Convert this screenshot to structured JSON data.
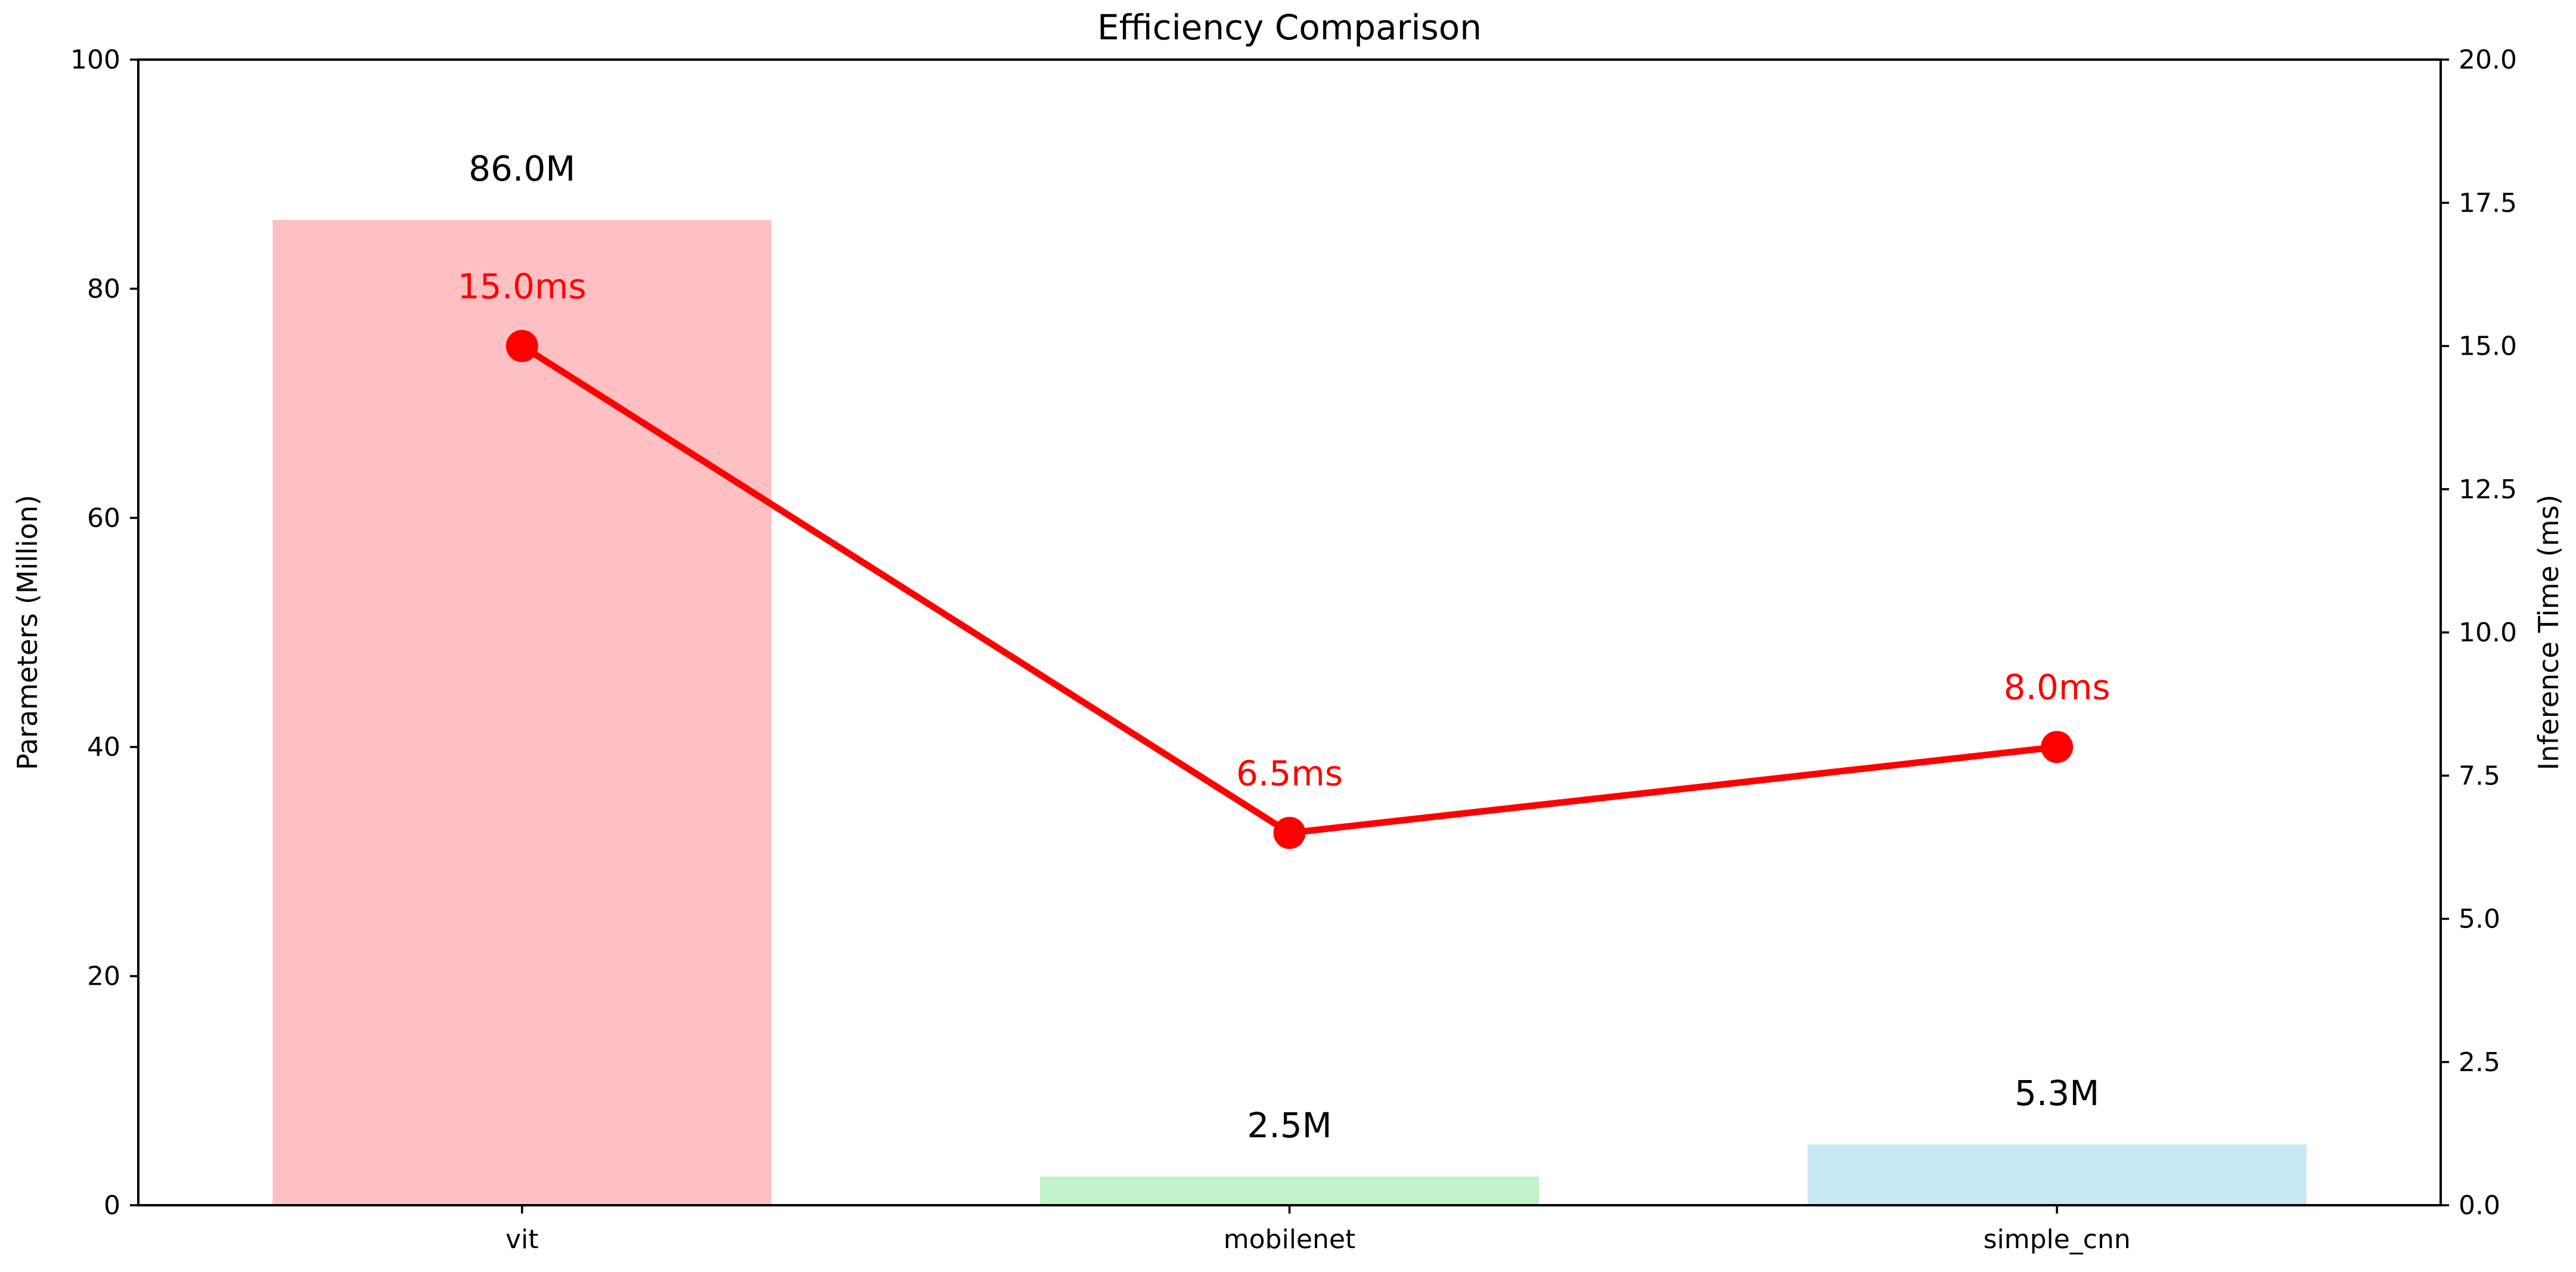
{
  "chart_data": {
    "type": "bar",
    "title": "Efficiency Comparison",
    "categories": [
      "vit",
      "mobilenet",
      "simple_cnn"
    ],
    "ylabel": "Parameters (Million)",
    "ylim": [
      0,
      100
    ],
    "yticks": [
      0,
      20,
      40,
      60,
      80,
      100
    ],
    "y2label": "Inference Time (ms)",
    "y2lim": [
      0,
      20
    ],
    "y2ticks": [
      "0.0",
      "2.5",
      "5.0",
      "7.5",
      "10.0",
      "12.5",
      "15.0",
      "17.5",
      "20.0"
    ],
    "grid": false,
    "series": [
      {
        "type": "bar",
        "axis": "left",
        "values": [
          86.0,
          2.5,
          5.3
        ],
        "labels": [
          "86.0M",
          "2.5M",
          "5.3M"
        ],
        "colors": [
          "#ffc0c3",
          "#c2f2c8",
          "#c6e8f5"
        ]
      },
      {
        "type": "line",
        "axis": "right",
        "values": [
          15.0,
          6.5,
          8.0
        ],
        "labels": [
          "15.0ms",
          "6.5ms",
          "8.0ms"
        ],
        "color": "#ff0000"
      }
    ]
  }
}
